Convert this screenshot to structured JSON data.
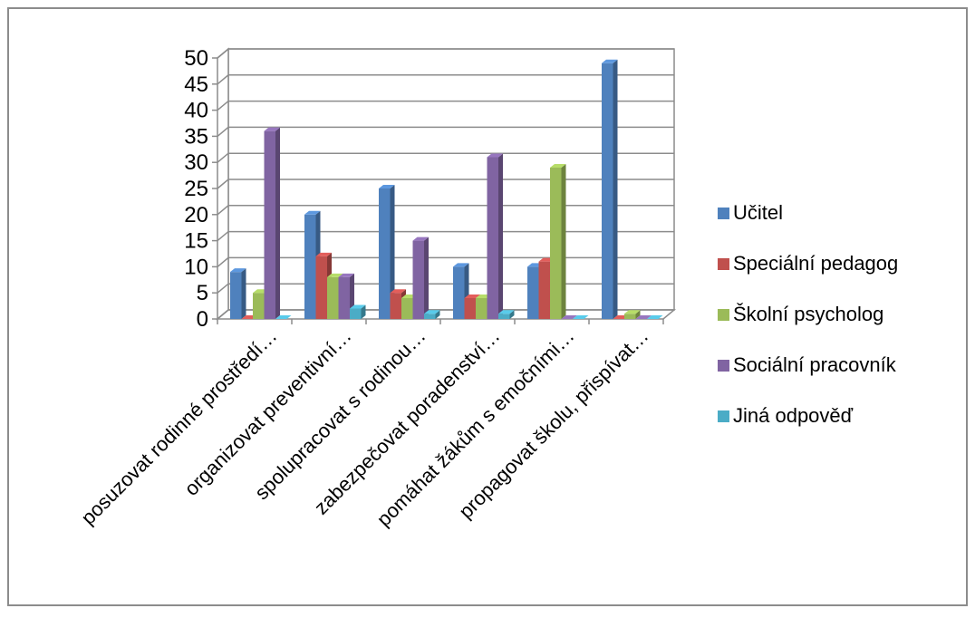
{
  "chart_data": {
    "type": "bar",
    "categories": [
      "posuzovat rodinné prostředí…",
      "organizovat preventivní…",
      "spolupracovat s rodinou…",
      "zabezpečovat poradenství…",
      "pomáhat žákům s emočními…",
      "propagovat školu, přispívat…"
    ],
    "series": [
      {
        "name": "Učitel",
        "values": [
          9,
          20,
          25,
          10,
          10,
          49
        ],
        "color": "#4F81BD"
      },
      {
        "name": "Speciální pedagog",
        "values": [
          0,
          12,
          5,
          4,
          11,
          0
        ],
        "color": "#C0504D"
      },
      {
        "name": "Školní psycholog",
        "values": [
          5,
          8,
          4,
          4,
          29,
          1
        ],
        "color": "#9BBB59"
      },
      {
        "name": "Sociální pracovník",
        "values": [
          36,
          8,
          15,
          31,
          0,
          0
        ],
        "color": "#8064A2"
      },
      {
        "name": "Jiná odpověď",
        "values": [
          0,
          2,
          1,
          1,
          0,
          0
        ],
        "color": "#4BACC6"
      }
    ],
    "ylim": [
      0,
      50
    ],
    "yticks": [
      "0",
      "5",
      "10",
      "15",
      "20",
      "25",
      "30",
      "35",
      "40",
      "45",
      "50"
    ],
    "grid": true,
    "legend_position": "right",
    "style": "3d-clustered-column"
  }
}
